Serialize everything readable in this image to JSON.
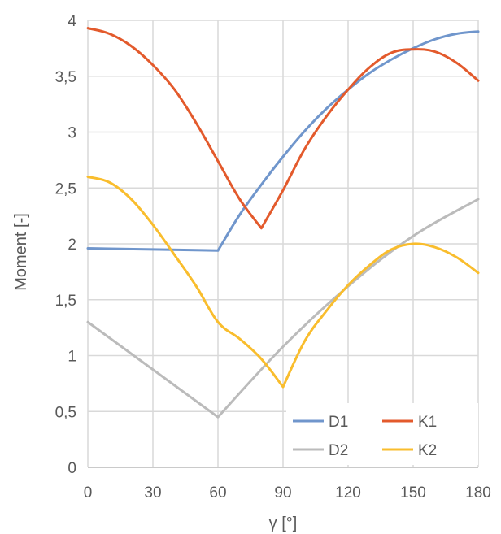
{
  "chart_data": {
    "type": "line",
    "title": "",
    "xlabel": "γ [°]",
    "ylabel": "Moment [-]",
    "xlim": [
      0,
      180
    ],
    "ylim": [
      0,
      4
    ],
    "xticks": [
      0,
      30,
      60,
      90,
      120,
      150,
      180
    ],
    "yticks": [
      0,
      0.5,
      1,
      1.5,
      2,
      2.5,
      3,
      3.5,
      4
    ],
    "xtick_labels": [
      "0",
      "30",
      "60",
      "90",
      "120",
      "150",
      "180"
    ],
    "ytick_labels": [
      "0",
      "0,5",
      "1",
      "1,5",
      "2",
      "2,5",
      "3",
      "3,5",
      "4"
    ],
    "grid": true,
    "legend_position": "bottom-right",
    "series": [
      {
        "name": "D1",
        "color": "#7096cc",
        "x": [
          0,
          30,
          60,
          70,
          80,
          90,
          100,
          110,
          120,
          130,
          140,
          150,
          160,
          170,
          180
        ],
        "y": [
          1.96,
          1.95,
          1.94,
          2.26,
          2.53,
          2.78,
          3.01,
          3.21,
          3.38,
          3.53,
          3.65,
          3.75,
          3.83,
          3.88,
          3.9
        ]
      },
      {
        "name": "K1",
        "color": "#e35a2c",
        "x": [
          0,
          10,
          20,
          30,
          40,
          50,
          60,
          70,
          80,
          90,
          100,
          110,
          120,
          130,
          140,
          150,
          160,
          170,
          180
        ],
        "y": [
          3.93,
          3.88,
          3.77,
          3.6,
          3.38,
          3.08,
          2.74,
          2.4,
          2.14,
          2.48,
          2.85,
          3.14,
          3.38,
          3.58,
          3.71,
          3.74,
          3.72,
          3.62,
          3.46
        ]
      },
      {
        "name": "D2",
        "color": "#bbbbbb",
        "x": [
          0,
          60,
          90,
          120,
          150,
          180
        ],
        "y": [
          1.3,
          0.45,
          1.08,
          1.62,
          2.07,
          2.4
        ]
      },
      {
        "name": "K2",
        "color": "#f9bd2d",
        "x": [
          0,
          10,
          20,
          30,
          40,
          50,
          60,
          70,
          80,
          90,
          100,
          110,
          120,
          130,
          140,
          150,
          160,
          170,
          180
        ],
        "y": [
          2.6,
          2.55,
          2.4,
          2.17,
          1.9,
          1.62,
          1.3,
          1.15,
          0.97,
          0.72,
          1.13,
          1.4,
          1.63,
          1.81,
          1.95,
          2.0,
          1.97,
          1.88,
          1.74
        ]
      }
    ],
    "legend_rows": [
      [
        "D1",
        "K1"
      ],
      [
        "D2",
        "K2"
      ]
    ]
  }
}
